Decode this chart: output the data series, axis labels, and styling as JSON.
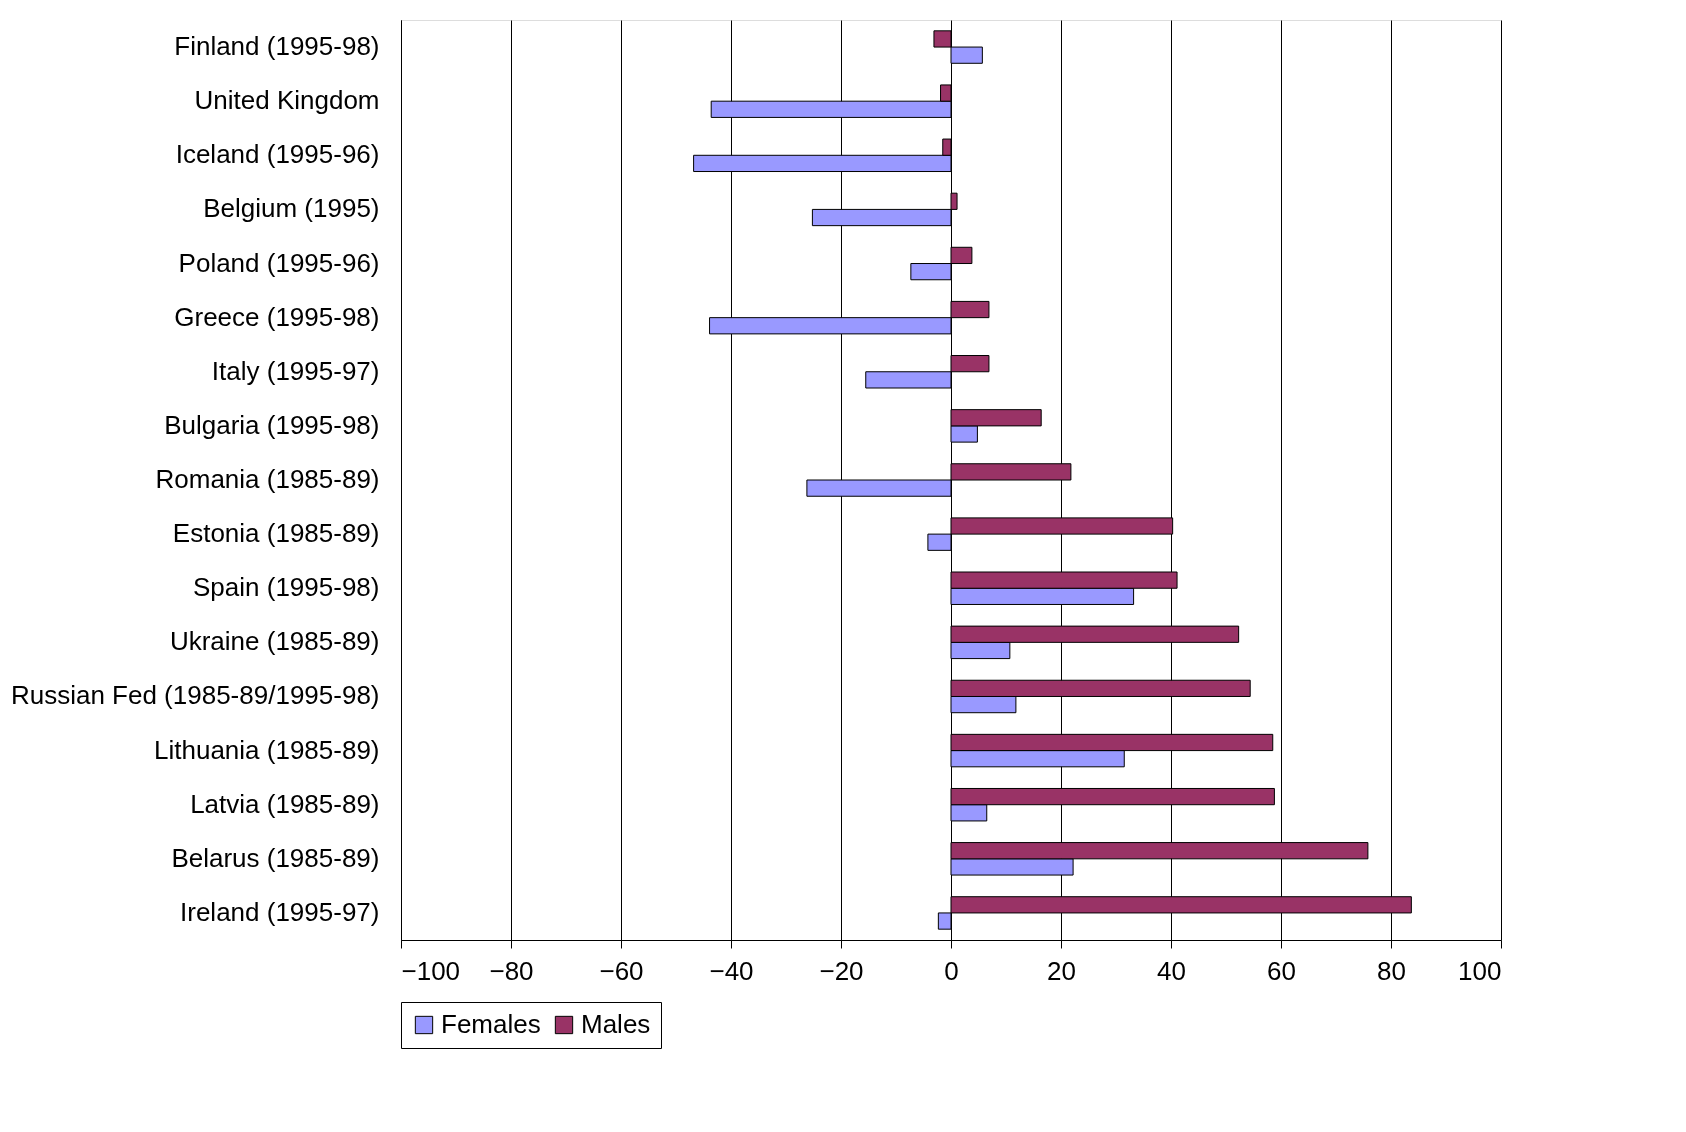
{
  "chart_data": {
    "type": "bar",
    "orientation": "horizontal",
    "categories": [
      "Finland (1995-98)",
      "United Kingdom",
      "Iceland (1995-96)",
      "Belgium (1995)",
      "Poland (1995-96)",
      "Greece (1995-98)",
      "Italy (1995-97)",
      "Bulgaria (1995-98)",
      "Romania (1985-89)",
      "Estonia (1985-89)",
      "Spain (1995-98)",
      "Ukraine (1985-89)",
      "Russian Fed (1985-89/1995-98)",
      "Lithuania (1985-89)",
      "Latvia (1985-89)",
      "Belarus (1985-89)",
      "Ireland (1995-97)"
    ],
    "series": [
      {
        "name": "Females",
        "color": "#9999ff",
        "values": [
          5.7,
          -43.6,
          -46.8,
          -25.2,
          -7.3,
          -43.9,
          -15.5,
          4.8,
          -26.2,
          -4.2,
          33.2,
          10.7,
          11.8,
          31.5,
          6.5,
          22.2,
          -2.3
        ]
      },
      {
        "name": "Males",
        "color": "#993366",
        "values": [
          -3.1,
          -1.9,
          -1.5,
          1.1,
          3.8,
          6.9,
          6.9,
          16.4,
          21.8,
          40.3,
          41.1,
          52.3,
          54.4,
          58.5,
          58.8,
          75.8,
          83.7
        ]
      }
    ],
    "xlim": [
      -100,
      100
    ],
    "xticks": [
      -100,
      -80,
      -60,
      -40,
      -20,
      0,
      20,
      40,
      60,
      80,
      100
    ],
    "grid": "x",
    "legend": "bottom"
  }
}
